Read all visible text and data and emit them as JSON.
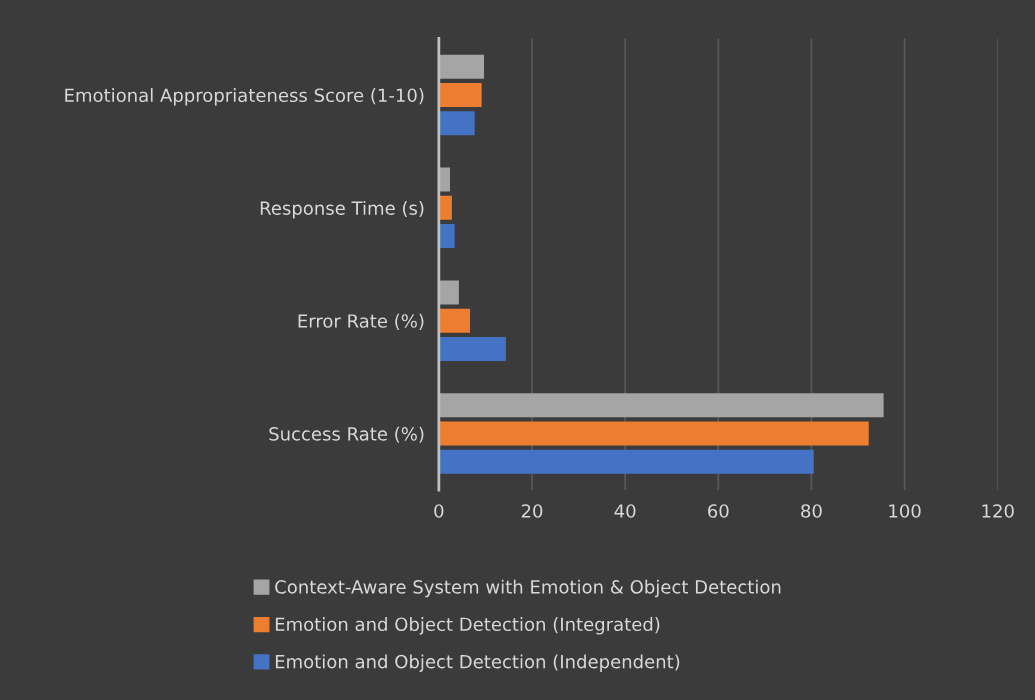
{
  "chart_data": {
    "type": "bar",
    "orientation": "horizontal",
    "categories": [
      "Emotional Appropriateness Score (1-10)",
      "Response Time (s)",
      "Error Rate (%)",
      "Success Rate (%)"
    ],
    "series": [
      {
        "name": "Context-Aware System with Emotion & Object Detection",
        "color": "#a5a5a5",
        "values": [
          9.7,
          2.4,
          4.3,
          95.5
        ]
      },
      {
        "name": "Emotion and Object Detection (Integrated)",
        "color": "#ed7d31",
        "values": [
          9.2,
          2.8,
          6.7,
          92.3
        ]
      },
      {
        "name": "Emotion and Object Detection (Independent)",
        "color": "#4472c4",
        "values": [
          7.7,
          3.4,
          14.4,
          80.5
        ]
      }
    ],
    "xlim": [
      0,
      120
    ],
    "xticks": [
      0,
      20,
      40,
      60,
      80,
      100,
      120
    ],
    "grid": "x",
    "legend": "bottom"
  }
}
